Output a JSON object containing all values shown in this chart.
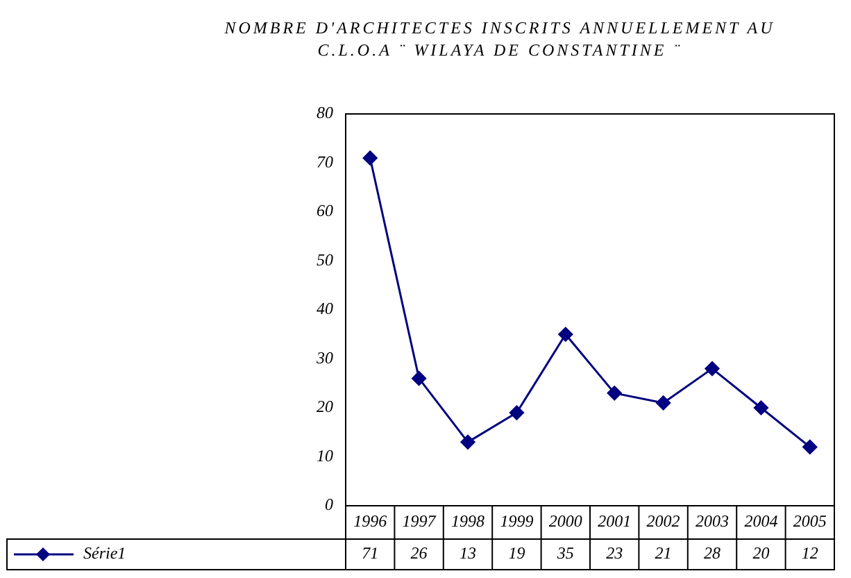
{
  "chart_data": {
    "type": "line",
    "title": "NOMBRE D'ARCHITECTES INSCRITS ANNUELLEMENT AU C.L.O.A ¨ WILAYA DE CONSTANTINE ¨",
    "categories": [
      "1996",
      "1997",
      "1998",
      "1999",
      "2000",
      "2001",
      "2002",
      "2003",
      "2004",
      "2005"
    ],
    "series": [
      {
        "name": "Série1",
        "color": "#000080",
        "values": [
          71,
          26,
          13,
          19,
          35,
          23,
          21,
          28,
          20,
          12
        ]
      }
    ],
    "ylim": [
      0,
      80
    ],
    "yticks": [
      0,
      10,
      20,
      30,
      40,
      50,
      60,
      70,
      80
    ],
    "grid": false,
    "legend": "bottom",
    "marker": "diamond",
    "line_style": "solid",
    "data_labels": true
  }
}
